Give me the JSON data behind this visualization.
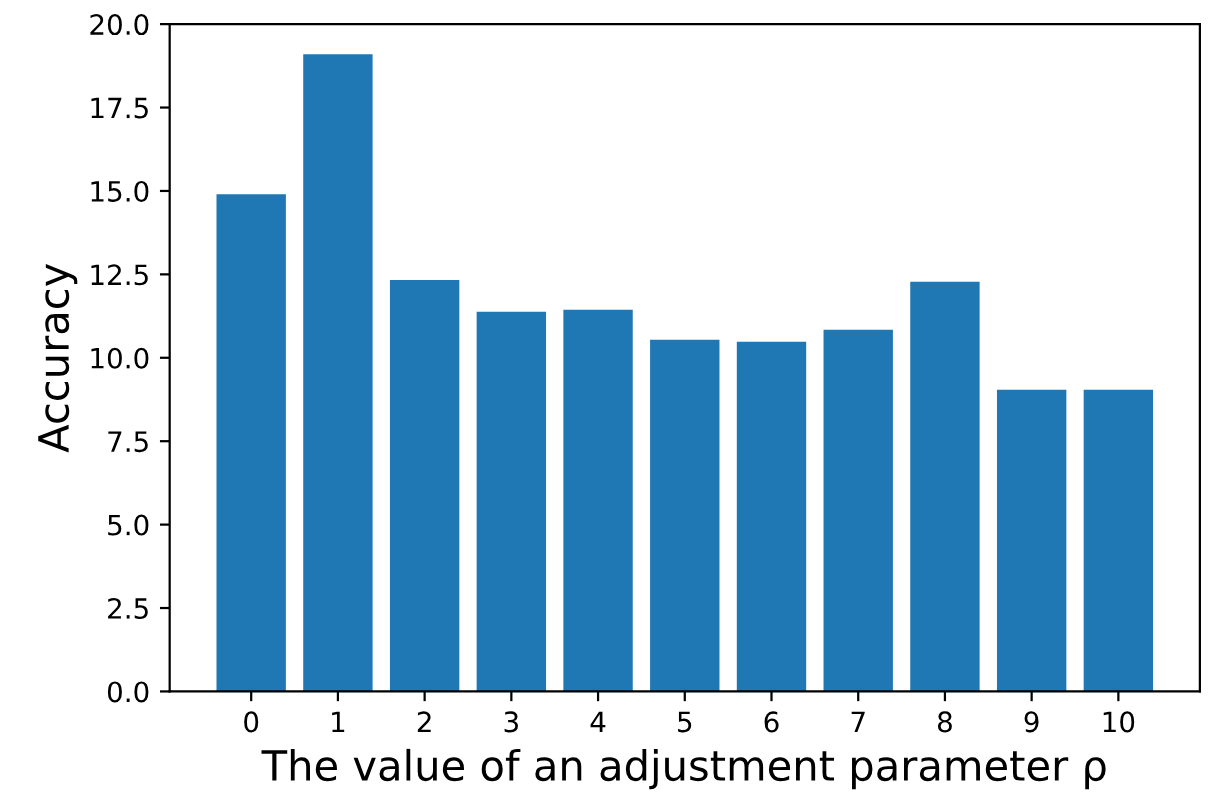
{
  "chart_data": {
    "type": "bar",
    "xlabel": "The value of an adjustment parameter ρ",
    "ylabel": "Accuracy",
    "categories": [
      "0",
      "1",
      "2",
      "3",
      "4",
      "5",
      "6",
      "7",
      "8",
      "9",
      "10"
    ],
    "values": [
      14.9,
      19.1,
      12.33,
      11.38,
      11.44,
      10.54,
      10.48,
      10.84,
      12.28,
      9.04,
      9.04
    ],
    "color": "#1f77b4",
    "ylim": [
      0,
      20
    ],
    "yticks": [
      {
        "value": 0,
        "label": "0.0"
      },
      {
        "value": 2.5,
        "label": "2.5"
      },
      {
        "value": 5,
        "label": "5.0"
      },
      {
        "value": 7.5,
        "label": "7.5"
      },
      {
        "value": 10,
        "label": "10.0"
      },
      {
        "value": 12.5,
        "label": "12.5"
      },
      {
        "value": 15,
        "label": "15.0"
      },
      {
        "value": 17.5,
        "label": "17.5"
      },
      {
        "value": 20,
        "label": "20.0"
      }
    ],
    "grid": false
  }
}
